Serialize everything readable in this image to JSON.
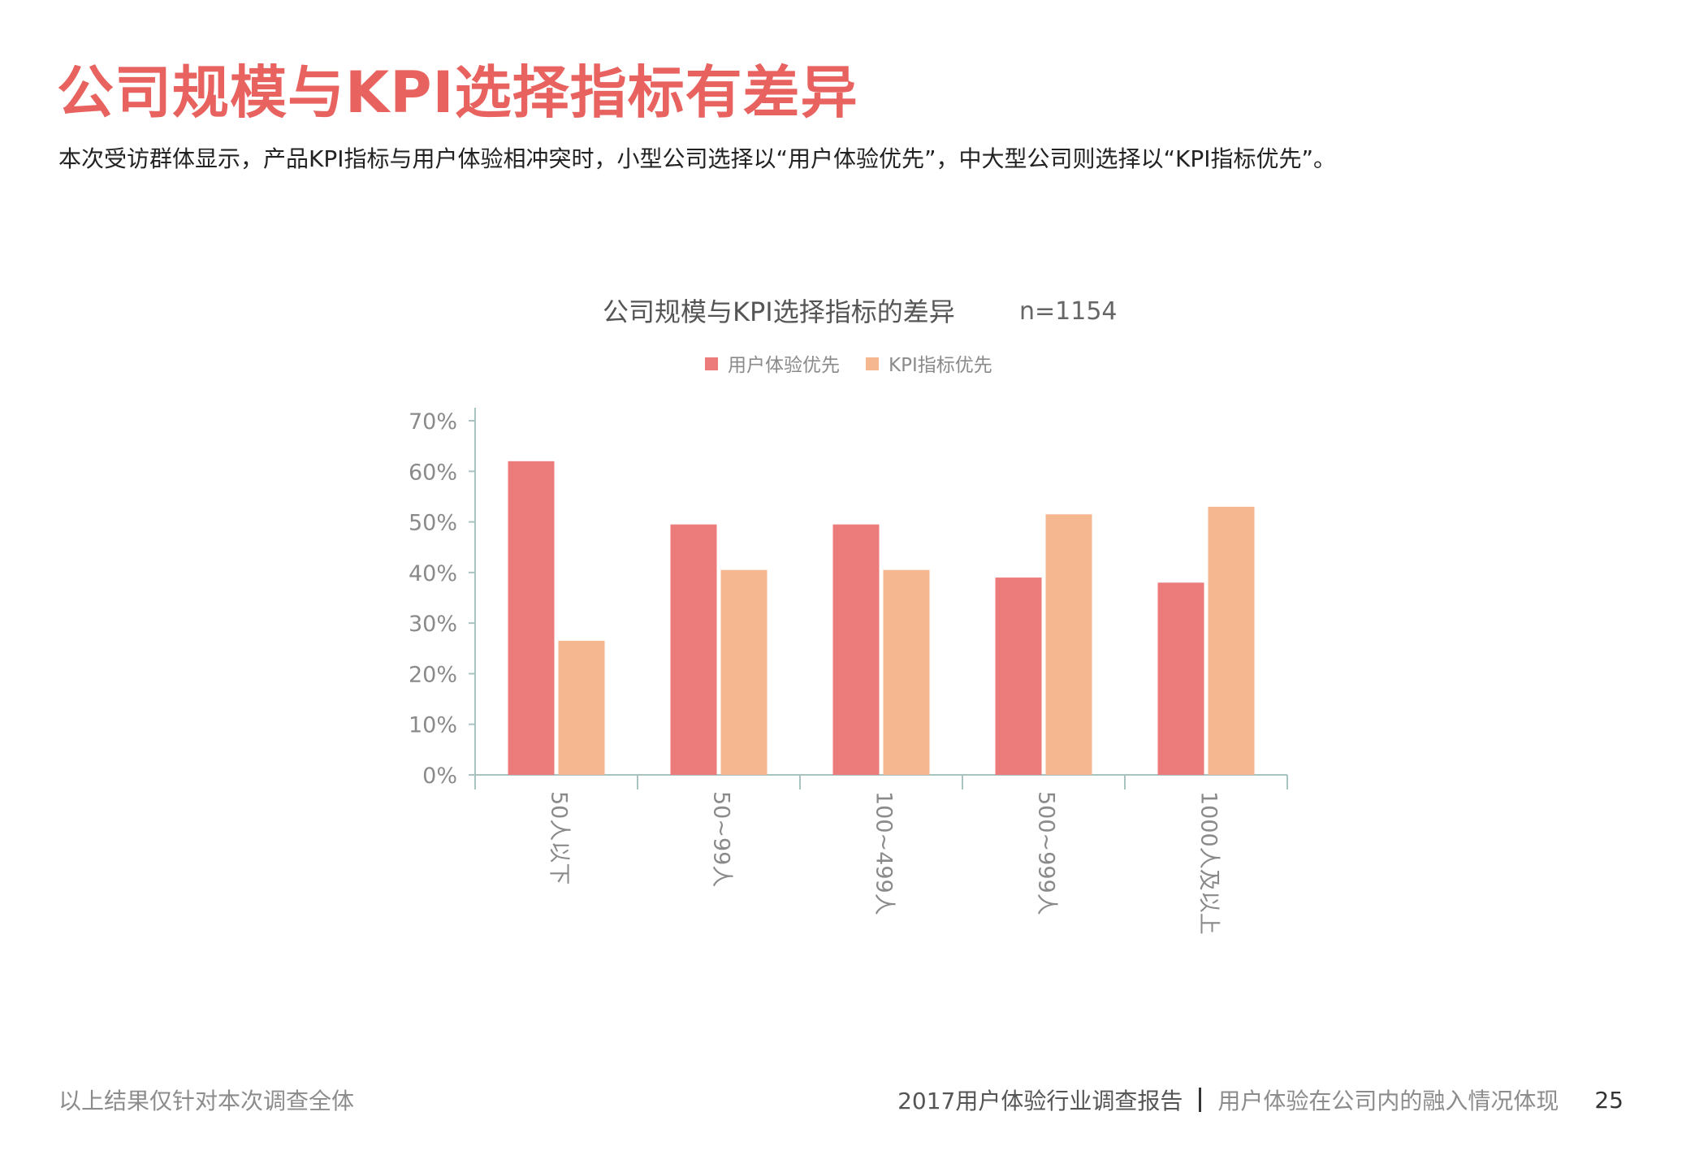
{
  "page": {
    "title": "公司规模与KPI选择指标有差异",
    "subtitle": "本次受访群体显示，产品KPI指标与用户体验相冲突时，小型公司选择以“用户体验优先”，中大型公司则选择以“KPI指标优先”。",
    "footer_left": "以上结果仅针对本次调查全体",
    "footer_report": "2017用户体验行业调查报告",
    "footer_section": "用户体验在公司内的融入情况体现",
    "page_number": "25"
  },
  "chart_data": {
    "type": "bar",
    "title": "公司规模与KPI选择指标的差异",
    "sample_size": "n=1154",
    "categories": [
      "50人以下",
      "50~99人",
      "100~499人",
      "500~999人",
      "1000人及以上"
    ],
    "series": [
      {
        "name": "用户体验优先",
        "color": "#ec7b7b",
        "values": [
          62,
          49.5,
          49.5,
          39,
          38
        ]
      },
      {
        "name": "KPI指标优先",
        "color": "#f4b78f",
        "values": [
          26.5,
          40.5,
          40.5,
          51.5,
          53
        ]
      }
    ],
    "ylim": [
      0,
      70
    ],
    "yticks": [
      "0%",
      "10%",
      "20%",
      "30%",
      "40%",
      "50%",
      "60%",
      "70%"
    ],
    "legend_position": "top-center",
    "grid": false
  }
}
